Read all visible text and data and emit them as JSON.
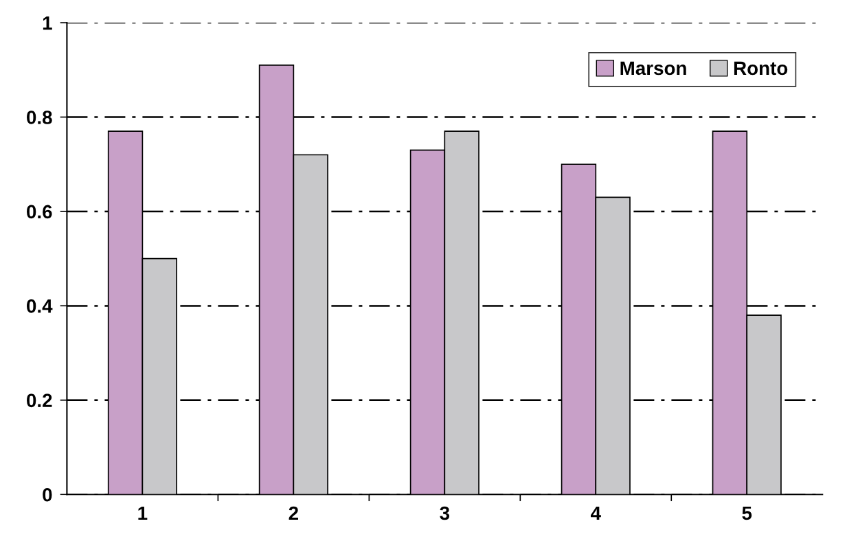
{
  "chart_data": {
    "type": "bar",
    "categories": [
      "1",
      "2",
      "3",
      "4",
      "5"
    ],
    "series": [
      {
        "name": "Marson",
        "color": "#c8a0c8",
        "values": [
          0.77,
          0.91,
          0.73,
          0.7,
          0.77
        ]
      },
      {
        "name": "Ronto",
        "color": "#c8c8ca",
        "values": [
          0.5,
          0.72,
          0.77,
          0.63,
          0.38
        ]
      }
    ],
    "ylim": [
      0,
      1
    ],
    "yticks": [
      0,
      0.2,
      0.4,
      0.6,
      0.8,
      1
    ],
    "grid": "y",
    "legend": "top right"
  }
}
